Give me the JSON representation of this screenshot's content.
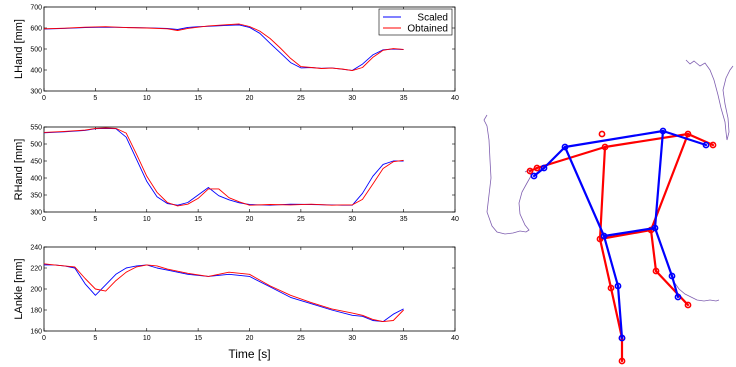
{
  "chart_data": [
    {
      "type": "line",
      "ylabel": "LHand [mm]",
      "xlim": [
        0,
        40
      ],
      "ylim": [
        300,
        700
      ],
      "xticks": [
        "0",
        "5",
        "10",
        "15",
        "20",
        "25",
        "30",
        "35",
        "40"
      ],
      "yticks": [
        "300",
        "400",
        "500",
        "600",
        "700"
      ],
      "series": [
        {
          "name": "Scaled",
          "color": "#0000ff",
          "x": [
            0,
            2,
            4,
            6,
            8,
            10,
            12,
            13,
            14,
            15,
            16,
            18,
            19,
            20,
            21,
            22,
            23,
            24,
            25,
            26,
            27,
            28,
            29,
            30,
            31,
            32,
            33,
            34,
            35
          ],
          "y": [
            595,
            598,
            602,
            604,
            603,
            601,
            598,
            593,
            603,
            606,
            608,
            613,
            615,
            603,
            575,
            527,
            482,
            435,
            410,
            412,
            408,
            410,
            404,
            398,
            428,
            472,
            496,
            500,
            497
          ]
        },
        {
          "name": "Obtained",
          "color": "#ff0000",
          "x": [
            0,
            2,
            4,
            6,
            8,
            10,
            12,
            13,
            14,
            15,
            16,
            18,
            19,
            20,
            21,
            22,
            23,
            24,
            25,
            26,
            27,
            28,
            29,
            30,
            31,
            32,
            33,
            34,
            35
          ],
          "y": [
            596,
            599,
            604,
            606,
            602,
            600,
            596,
            588,
            598,
            604,
            610,
            616,
            619,
            607,
            585,
            550,
            505,
            455,
            416,
            412,
            407,
            409,
            405,
            397,
            412,
            460,
            494,
            502,
            498
          ]
        }
      ],
      "legend": {
        "position": "top-right",
        "entries": [
          "Scaled",
          "Obtained"
        ]
      }
    },
    {
      "type": "line",
      "ylabel": "RHand [mm]",
      "xlim": [
        0,
        40
      ],
      "ylim": [
        300,
        550
      ],
      "xticks": [
        "0",
        "5",
        "10",
        "15",
        "20",
        "25",
        "30",
        "35",
        "40"
      ],
      "yticks": [
        "300",
        "350",
        "400",
        "450",
        "500",
        "550"
      ],
      "series": [
        {
          "name": "Scaled",
          "color": "#0000ff",
          "x": [
            0,
            2,
            4,
            5,
            6,
            7,
            8,
            9,
            10,
            11,
            12,
            13,
            14,
            15,
            16,
            17,
            18,
            19,
            20,
            22,
            24,
            26,
            28,
            29,
            30,
            31,
            32,
            33,
            34,
            35
          ],
          "y": [
            533,
            536,
            540,
            545,
            546,
            545,
            520,
            455,
            390,
            345,
            325,
            320,
            328,
            350,
            372,
            348,
            336,
            327,
            322,
            320,
            323,
            322,
            321,
            320,
            320,
            355,
            405,
            440,
            450,
            450
          ]
        },
        {
          "name": "Obtained",
          "color": "#ff0000",
          "x": [
            0,
            2,
            4,
            5,
            6,
            7,
            8,
            9,
            10,
            11,
            12,
            13,
            14,
            15,
            16,
            17,
            18,
            19,
            20,
            22,
            24,
            26,
            28,
            29,
            30,
            31,
            32,
            33,
            34,
            35
          ],
          "y": [
            534,
            537,
            541,
            546,
            547,
            546,
            532,
            470,
            405,
            358,
            328,
            318,
            323,
            340,
            368,
            368,
            342,
            330,
            320,
            322,
            321,
            323,
            320,
            321,
            321,
            337,
            382,
            428,
            448,
            452
          ]
        }
      ]
    },
    {
      "type": "line",
      "ylabel": "LAnkle [mm]",
      "xlabel": "Time [s]",
      "xlim": [
        0,
        40
      ],
      "ylim": [
        160,
        240
      ],
      "xticks": [
        "0",
        "5",
        "10",
        "15",
        "20",
        "25",
        "30",
        "35",
        "40"
      ],
      "yticks": [
        "160",
        "180",
        "200",
        "220",
        "240"
      ],
      "series": [
        {
          "name": "Scaled",
          "color": "#0000ff",
          "x": [
            0,
            1,
            2,
            3,
            4,
            5,
            6,
            7,
            8,
            9,
            10,
            11,
            12,
            14,
            16,
            18,
            20,
            22,
            24,
            26,
            28,
            30,
            31,
            32,
            33,
            34,
            35
          ],
          "y": [
            223,
            223,
            222,
            220,
            205,
            194,
            204,
            214,
            220,
            222,
            223,
            220,
            218,
            214,
            212,
            214,
            212,
            202,
            192,
            186,
            180,
            175,
            174,
            170,
            169,
            176,
            181
          ]
        },
        {
          "name": "Obtained",
          "color": "#ff0000",
          "x": [
            0,
            1,
            2,
            3,
            4,
            5,
            6,
            7,
            8,
            9,
            10,
            11,
            12,
            14,
            16,
            18,
            20,
            22,
            24,
            26,
            28,
            30,
            31,
            32,
            33,
            34,
            35
          ],
          "y": [
            224,
            223,
            222,
            221,
            210,
            200,
            198,
            208,
            216,
            221,
            223,
            222,
            219,
            215,
            212,
            216,
            214,
            203,
            194,
            187,
            181,
            177,
            175,
            171,
            169,
            170,
            180
          ]
        }
      ]
    }
  ],
  "skeleton": {
    "colors": {
      "scaled": "#0000ff",
      "obtained": "#ff0000",
      "trajectory": "#7f5fb0"
    }
  }
}
